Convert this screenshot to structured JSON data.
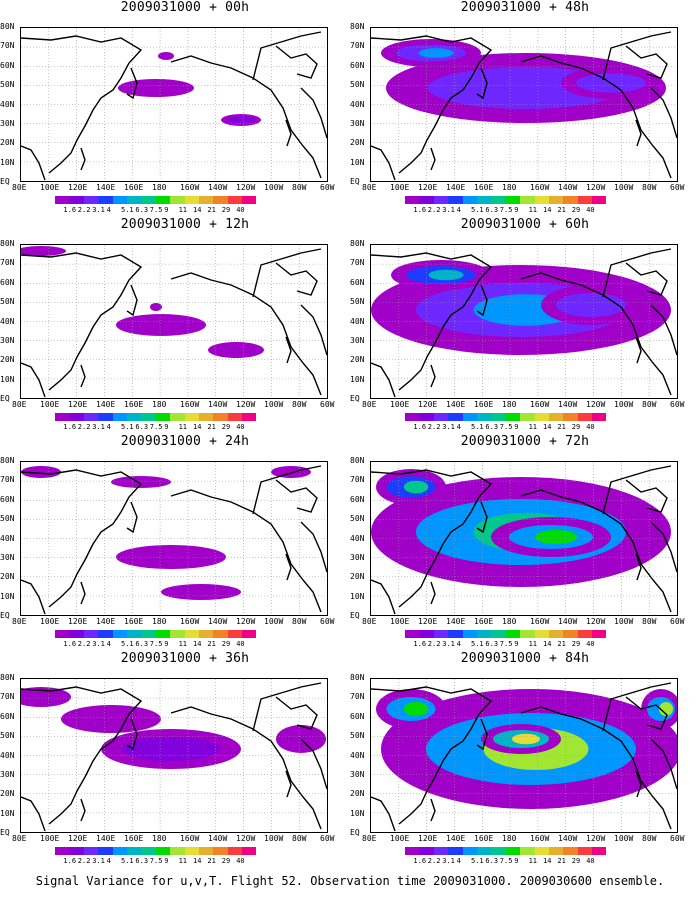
{
  "panels": [
    {
      "title": "2009031000 + 00h"
    },
    {
      "title": "2009031000 + 48h"
    },
    {
      "title": "2009031000 + 12h"
    },
    {
      "title": "2009031000 + 60h"
    },
    {
      "title": "2009031000 + 24h"
    },
    {
      "title": "2009031000 + 72h"
    },
    {
      "title": "2009031000 + 36h"
    },
    {
      "title": "2009031000 + 84h"
    }
  ],
  "axes": {
    "lat_labels": [
      "80N",
      "70N",
      "60N",
      "50N",
      "40N",
      "30N",
      "20N",
      "10N",
      "EQ"
    ],
    "lon_labels": [
      "80E",
      "100E",
      "120E",
      "140E",
      "160E",
      "180",
      "160W",
      "140W",
      "120W",
      "100W",
      "80W",
      "60W"
    ]
  },
  "colorbar": {
    "labels": [
      "1.6",
      "2.2",
      "3.1",
      "4",
      "5.1",
      "6.3",
      "7.5",
      "9",
      "11",
      "14",
      "21",
      "29",
      "40"
    ],
    "colors": [
      "#a000c8",
      "#8200dc",
      "#6e28ff",
      "#1e3cff",
      "#0096ff",
      "#00b4c8",
      "#00c88c",
      "#00dc00",
      "#a0e632",
      "#e6dc32",
      "#e6af2d",
      "#f08228",
      "#fa3c3c",
      "#f00082"
    ]
  },
  "footer": "Signal Variance for u,v,T. Flight 52. Observation time 2009031000. 2009030600 ensemble."
}
